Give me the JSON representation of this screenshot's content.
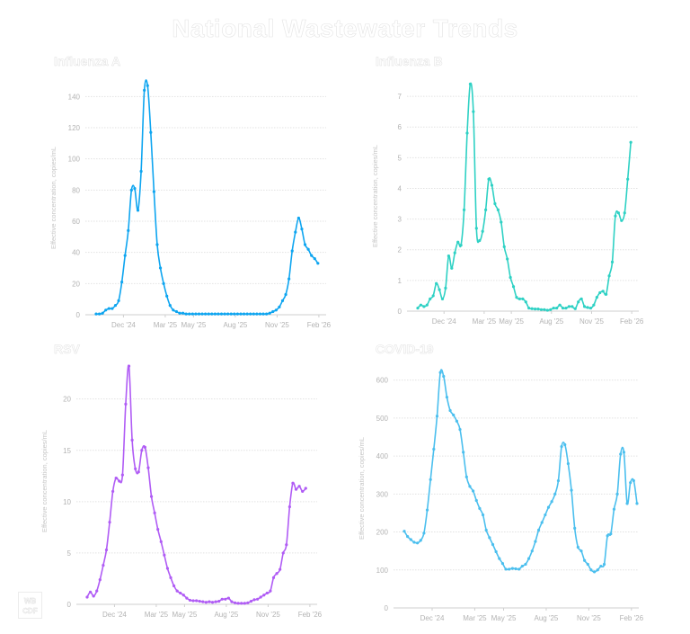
{
  "title": "National Wastewater Trends",
  "logo": {
    "line1": "WB",
    "line2": "CDF"
  },
  "x_ticks": [
    "Dec '24",
    "Mar '25",
    "May '25",
    "Aug '25",
    "Nov '25",
    "Feb '26"
  ],
  "chart_data": [
    {
      "type": "line",
      "title": "Influenza A",
      "ylabel": "Effective concentration, copies/mL",
      "xlabel": "",
      "color": "#0ea5f0",
      "ylim": [
        0,
        150
      ],
      "yticks": [
        0,
        20,
        40,
        60,
        80,
        100,
        120,
        140
      ],
      "values": [
        0.5,
        0.5,
        1,
        3,
        4,
        4,
        6,
        9,
        21,
        38,
        54,
        80,
        81,
        67,
        92,
        144,
        147,
        117,
        79,
        45,
        30,
        20,
        12,
        6,
        3,
        2,
        1,
        1,
        0.5,
        0.5,
        0.5,
        0.5,
        0.5,
        0.5,
        0.5,
        0.5,
        0.5,
        0.5,
        0.5,
        0.5,
        0.5,
        0.5,
        0.5,
        0.5,
        0.5,
        0.5,
        0.5,
        0.5,
        0.5,
        0.5,
        0.5,
        0.5,
        0.5,
        0.5,
        1,
        2,
        3,
        5,
        9,
        13,
        23,
        41,
        53,
        62,
        55,
        45,
        42,
        38,
        36,
        33
      ]
    },
    {
      "type": "line",
      "title": "Influenza B",
      "ylabel": "Effective concentration, copies/mL",
      "xlabel": "",
      "color": "#2ed1c4",
      "ylim": [
        0,
        7.5
      ],
      "yticks": [
        0,
        1,
        2,
        3,
        4,
        5,
        6,
        7
      ],
      "values": [
        0.1,
        0.2,
        0.15,
        0.2,
        0.4,
        0.5,
        0.9,
        0.7,
        0.4,
        0.75,
        1.8,
        1.4,
        1.9,
        2.25,
        2.15,
        3.3,
        5.8,
        7.4,
        6.5,
        2.7,
        2.3,
        2.6,
        3.3,
        4.3,
        4.1,
        3.5,
        3.3,
        2.9,
        2.1,
        1.7,
        1.1,
        0.8,
        0.45,
        0.4,
        0.4,
        0.3,
        0.1,
        0.08,
        0.07,
        0.07,
        0.05,
        0.05,
        0.03,
        0.05,
        0.1,
        0.1,
        0.2,
        0.1,
        0.1,
        0.15,
        0.15,
        0.08,
        0.3,
        0.4,
        0.15,
        0.12,
        0.1,
        0.2,
        0.45,
        0.6,
        0.65,
        0.55,
        1.15,
        1.6,
        3.1,
        3.2,
        2.95,
        3.2,
        4.3,
        5.5
      ]
    },
    {
      "type": "line",
      "title": "RSV",
      "ylabel": "Effective concentration, copies/mL",
      "xlabel": "",
      "color": "#b05cf5",
      "ylim": [
        0,
        24
      ],
      "yticks": [
        0,
        5,
        10,
        15,
        20
      ],
      "values": [
        0.7,
        1.2,
        0.8,
        1.3,
        2.4,
        3.8,
        5.3,
        8,
        11,
        12.3,
        12,
        12.6,
        19.5,
        23.2,
        16,
        13.2,
        12.9,
        15,
        15.3,
        13.3,
        10.5,
        8.9,
        7.3,
        6.1,
        4.8,
        3.5,
        2.6,
        1.8,
        1.3,
        1.1,
        0.9,
        0.6,
        0.4,
        0.35,
        0.35,
        0.3,
        0.25,
        0.2,
        0.25,
        0.2,
        0.25,
        0.3,
        0.5,
        0.5,
        0.6,
        0.25,
        0.15,
        0.1,
        0.1,
        0.1,
        0.15,
        0.3,
        0.45,
        0.5,
        0.7,
        0.9,
        1.1,
        1.3,
        2.6,
        3,
        3.4,
        5,
        5.8,
        9.5,
        11.8,
        11.2,
        11.5,
        11,
        11.3
      ]
    },
    {
      "type": "line",
      "title": "COVID-19",
      "ylabel": "Effective concentration, copies/mL",
      "xlabel": "",
      "color": "#4bbfee",
      "ylim": [
        0,
        630
      ],
      "yticks": [
        0,
        100,
        200,
        300,
        400,
        500,
        600
      ],
      "values": [
        202,
        188,
        180,
        173,
        171,
        178,
        197,
        258,
        338,
        418,
        505,
        620,
        610,
        555,
        520,
        508,
        492,
        470,
        410,
        345,
        320,
        308,
        283,
        262,
        245,
        205,
        185,
        167,
        148,
        130,
        117,
        102,
        102,
        104,
        103,
        102,
        110,
        115,
        130,
        150,
        175,
        205,
        225,
        245,
        265,
        280,
        300,
        335,
        425,
        430,
        380,
        310,
        210,
        160,
        150,
        125,
        115,
        100,
        95,
        100,
        110,
        115,
        190,
        195,
        260,
        300,
        405,
        410,
        275,
        330,
        335,
        275
      ]
    }
  ]
}
